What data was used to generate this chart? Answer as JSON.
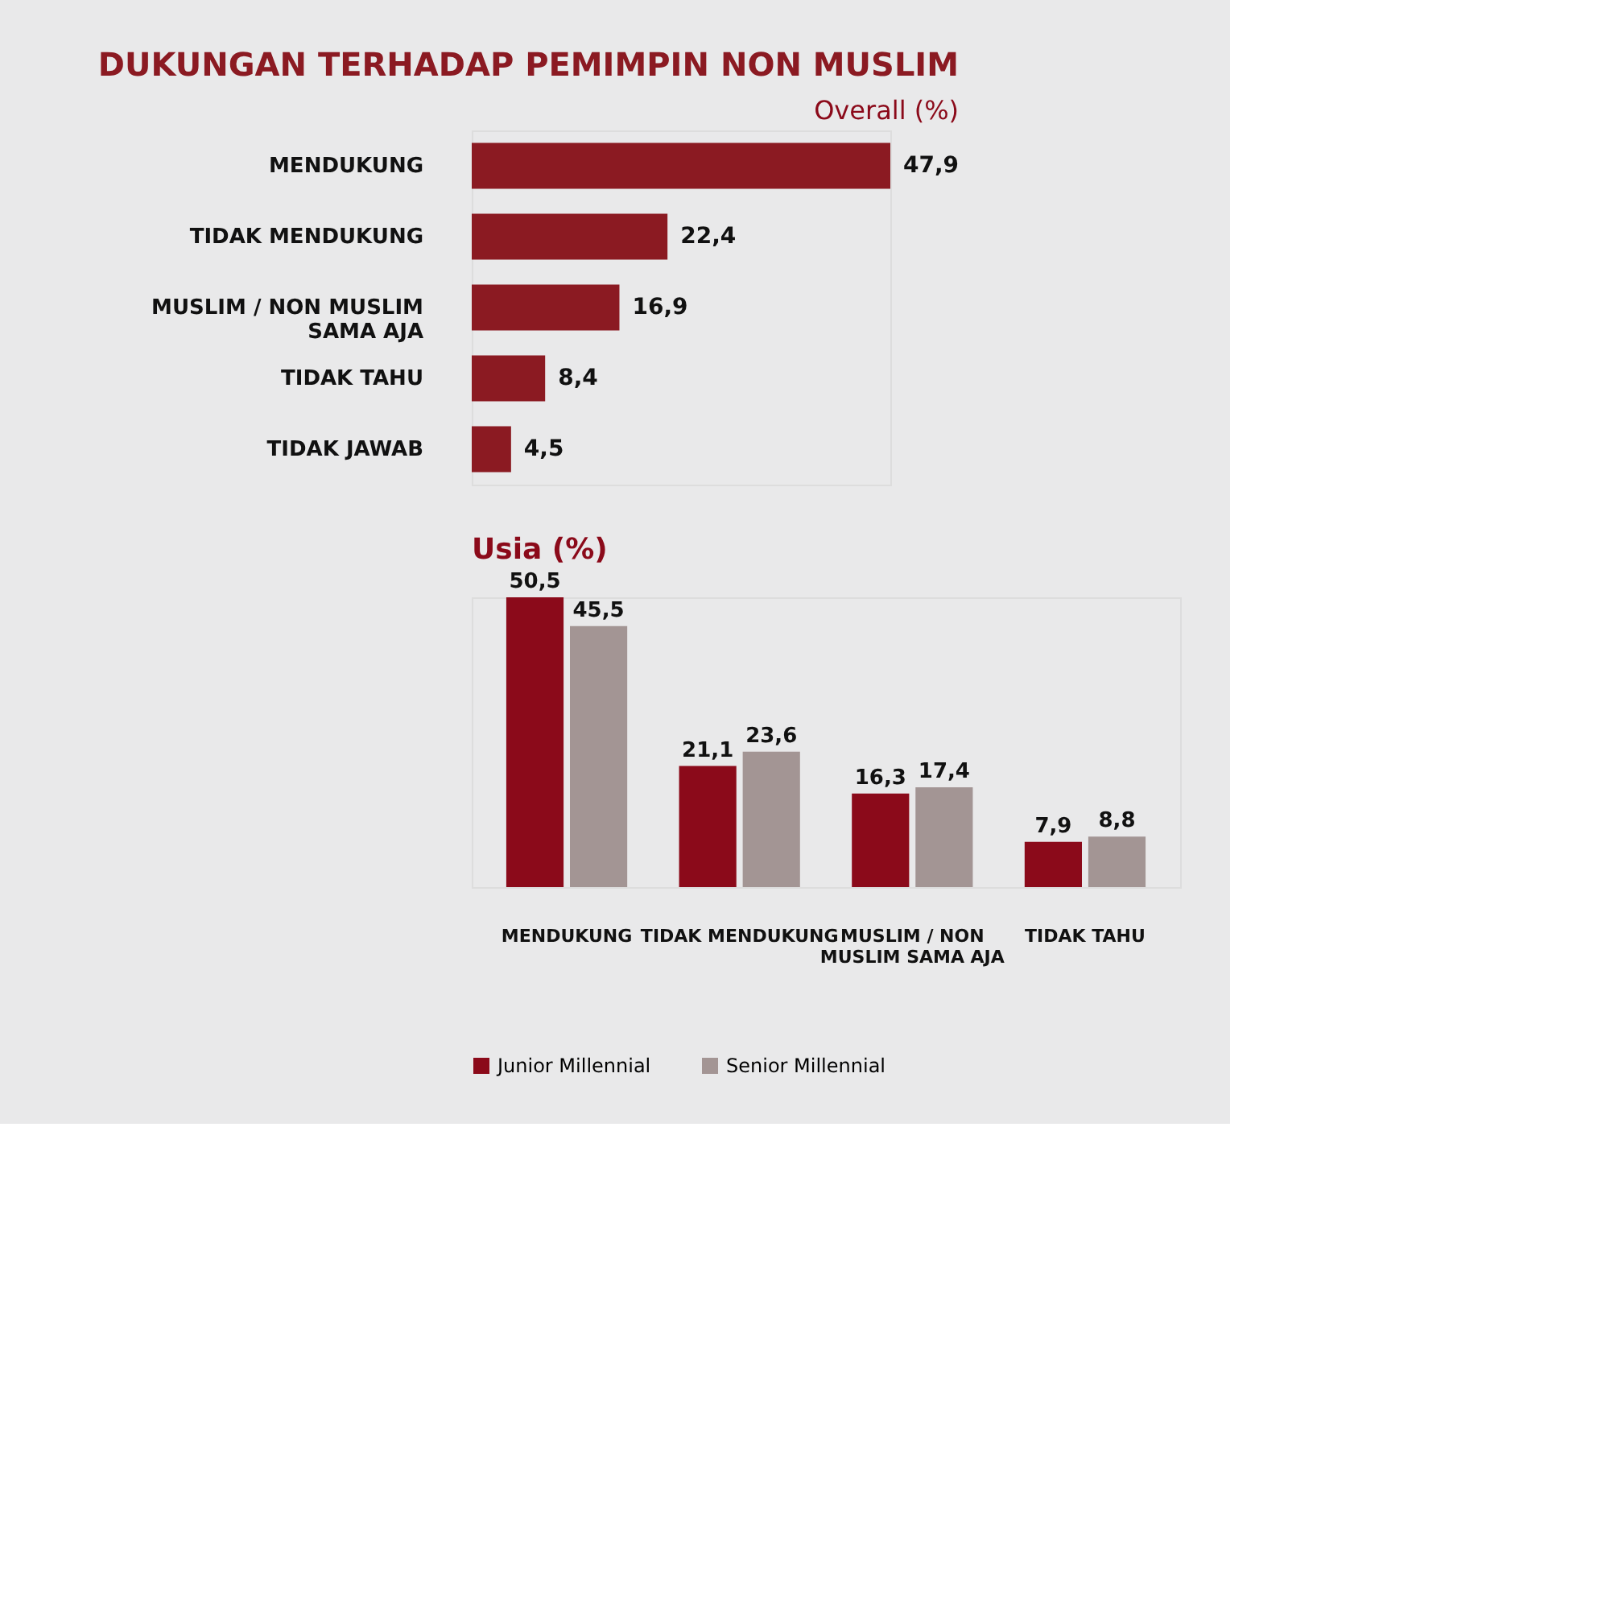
{
  "chart_data": [
    {
      "type": "bar",
      "orientation": "horizontal",
      "title": "DUKUNGAN TERHADAP PEMIMPIN NON MUSLIM",
      "subtitle": "Overall (%)",
      "categories": [
        "MENDUKUNG",
        "TIDAK MENDUKUNG",
        "MUSLIM / NON MUSLIM SAMA AJA",
        "TIDAK TAHU",
        "TIDAK JAWAB"
      ],
      "values": [
        47.9,
        22.4,
        16.9,
        8.4,
        4.5
      ],
      "color": "#8b1a22",
      "data_labels": true,
      "value_labels": [
        "47,9",
        "22,4",
        "16,9",
        "8,4",
        "4,5"
      ]
    },
    {
      "type": "bar",
      "title": "Usia (%)",
      "categories": [
        "MENDUKUNG",
        "TIDAK MENDUKUNG",
        "MUSLIM / NON MUSLIM SAMA AJA",
        "TIDAK TAHU"
      ],
      "series": [
        {
          "name": "Junior Millennial",
          "color": "#8b0a1a",
          "values": [
            50.5,
            21.1,
            16.3,
            7.9
          ],
          "value_labels": [
            "50,5",
            "21,1",
            "16,3",
            "7,9"
          ]
        },
        {
          "name": "Senior Millennial",
          "color": "#a39594",
          "values": [
            45.5,
            23.6,
            17.4,
            8.8
          ],
          "value_labels": [
            "45,5",
            "23,6",
            "17,4",
            "8,8"
          ]
        }
      ],
      "data_labels": true,
      "legend": "bottom"
    }
  ]
}
